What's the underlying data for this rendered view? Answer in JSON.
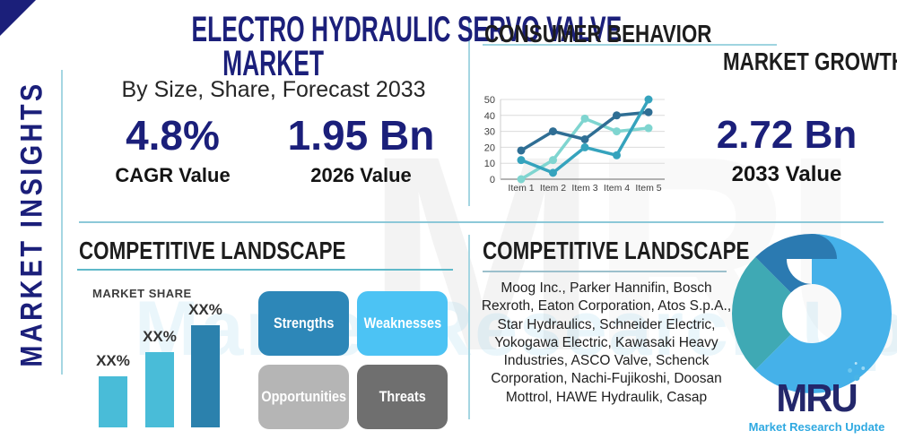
{
  "page": {
    "title_line1": "ELECTRO HYDRAULIC SERVO VALVE",
    "title_line2": "MARKET",
    "subtitle": "By Size, Share, Forecast 2033",
    "sidebar_vertical_label": "MARKET INSIGHTS"
  },
  "stats": {
    "cagr": {
      "value": "4.8%",
      "label": "CAGR Value"
    },
    "base_year": {
      "value": "1.95 Bn",
      "label": "2026 Value"
    },
    "forecast_year": {
      "value": "2.72 Bn",
      "label": "2033 Value"
    }
  },
  "sections": {
    "consumer_behavior": {
      "title": "CONSUMER BEHAVIOR"
    },
    "market_growth": {
      "title": "MARKET GROWTH"
    },
    "competitive_left": {
      "title": "COMPETITIVE LANDSCAPE"
    },
    "swot": {
      "items": [
        {
          "label": "Strengths",
          "color": "#2d87b8"
        },
        {
          "label": "Weaknesses",
          "color": "#4cc3f4"
        },
        {
          "label": "Opportunities",
          "color": "#b5b5b5"
        },
        {
          "label": "Threats",
          "color": "#6f6f6f"
        }
      ]
    },
    "competitive_right": {
      "title": "COMPETITIVE LANDSCAPE",
      "companies": "Moog Inc., Parker Hannifin, Bosch Rexroth, Eaton Corporation, Atos S.p.A., Star Hydraulics, Schneider Electric, Yokogawa Electric, Kawasaki Heavy Industries, ASCO Valve, Schenck Corporation, Nachi-Fujikoshi, Doosan Mottrol, HAWE Hydraulik, Casap"
    }
  },
  "logo": {
    "text": "MRU",
    "tagline": "Market Research Update"
  },
  "watermark": {
    "letter_main": "M",
    "letters_rest": "RU",
    "word": "Market Research Update"
  },
  "colors": {
    "navy": "#1b1f7a",
    "divider_teal": "#8cc8d8",
    "light_blue": "#45b1e9",
    "teal": "#3fa9b4",
    "steel_blue": "#2b81ad"
  },
  "chart_data": [
    {
      "id": "market-growth-line",
      "type": "line",
      "x": [
        "Item 1",
        "Item 2",
        "Item 3",
        "Item 4",
        "Item 5"
      ],
      "ylim": [
        0,
        50
      ],
      "y_ticks": [
        0,
        10,
        20,
        30,
        40,
        50
      ],
      "grid": true,
      "legend": "none",
      "series": [
        {
          "name": "dark-blue-series",
          "color": "#2f6e94",
          "values": [
            18,
            30,
            25,
            40,
            42
          ]
        },
        {
          "name": "teal-series",
          "color": "#35a3bd",
          "values": [
            12,
            4,
            20,
            15,
            50
          ]
        },
        {
          "name": "light-teal-series",
          "color": "#7fd5d0",
          "values": [
            0,
            12,
            38,
            30,
            32
          ]
        }
      ]
    },
    {
      "id": "market-share-bars",
      "type": "bar",
      "title": "MARKET SHARE",
      "categories": [
        "bar-1",
        "bar-2",
        "bar-3"
      ],
      "value_labels": [
        "XX%",
        "XX%",
        "XX%"
      ],
      "relative_heights": [
        0.5,
        0.74,
        1.0
      ],
      "colors": [
        "#49bcd8",
        "#49bcd8",
        "#2b81ad"
      ]
    },
    {
      "id": "company-share-donut",
      "type": "pie",
      "donut": true,
      "segments": [
        {
          "name": "light-blue-segment",
          "pct": 62.5,
          "color": "#45b1e9"
        },
        {
          "name": "teal-segment",
          "pct": 25,
          "color": "#3fa9b4"
        },
        {
          "name": "dark-blue-segment",
          "pct": 12.5,
          "color": "#2b7ab1"
        }
      ]
    }
  ]
}
